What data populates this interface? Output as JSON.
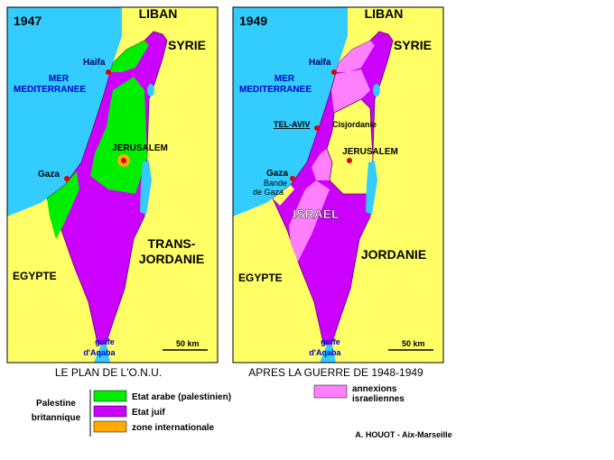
{
  "maps": [
    {
      "year": "1947",
      "caption": "LE PLAN DE L'O.N.U.",
      "labels": {
        "liban": "LIBAN",
        "syrie": "SYRIE",
        "mer": [
          "MER",
          "MEDITERRANEE"
        ],
        "haifa": "Haifa",
        "jerusalem": "JERUSALEM",
        "gaza": "Gaza",
        "jordanie": [
          "TRANS-",
          "JORDANIE"
        ],
        "egypte": "EGYPTE",
        "golfe": [
          "golfe",
          "d'Aqaba"
        ],
        "scale": "50 km"
      }
    },
    {
      "year": "1949",
      "caption": "APRES LA GUERRE DE 1948-1949",
      "labels": {
        "liban": "LIBAN",
        "syrie": "SYRIE",
        "mer": [
          "MER",
          "MEDITERRANEE"
        ],
        "haifa": "Haifa",
        "telaviv": "TEL-AVIV",
        "cisjordanie": "Cisjordanie",
        "jerusalem": "JERUSALEM",
        "gaza": "Gaza",
        "bande": [
          "Bande",
          "de Gaza"
        ],
        "israel": "ISRAEL",
        "jordanie": [
          "JORDANIE"
        ],
        "egypte": "EGYPTE",
        "golfe": [
          "golfe",
          "d'Aqaba"
        ],
        "scale": "50 km"
      }
    }
  ],
  "legend": {
    "group": [
      "Palestine",
      "britannique"
    ],
    "items": [
      "Etat arabe (palestinien)",
      "Etat juif",
      "zone internationale"
    ],
    "annex": [
      "annexions",
      "israeliennes"
    ]
  },
  "credit": "A. HOUOT - Aix-Marseille"
}
